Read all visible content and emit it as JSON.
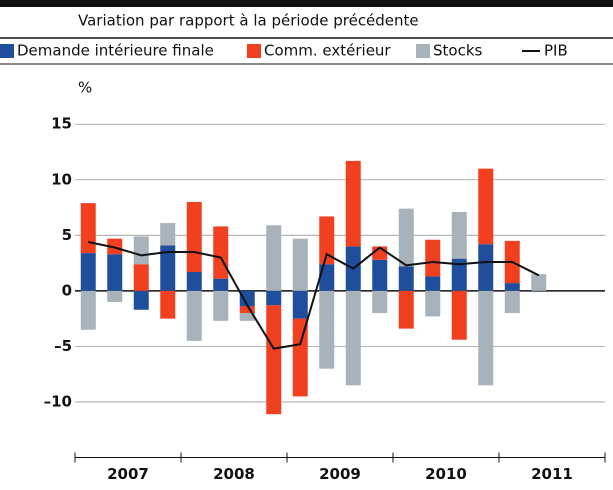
{
  "chart_data": {
    "type": "bar",
    "subtitle": "Variation par rapport à la période précédente",
    "y_unit": "%",
    "categories": [
      null,
      null,
      null,
      null,
      null,
      null,
      null,
      null,
      null,
      null,
      null,
      null,
      null,
      null,
      null,
      null,
      null,
      null
    ],
    "year_labels": [
      "2007",
      "2008",
      "2009",
      "2010",
      "2011"
    ],
    "series": [
      {
        "name": "Demande intérieure finale",
        "type": "bar",
        "color": "#1f4e9c",
        "values": [
          3.4,
          3.3,
          -1.7,
          4.1,
          1.7,
          1.1,
          -1.4,
          -1.3,
          -2.5,
          2.4,
          4.0,
          2.8,
          2.2,
          1.3,
          2.9,
          4.2,
          0.7,
          0
        ]
      },
      {
        "name": "Comm. extérieur",
        "type": "bar",
        "color": "#f0401f",
        "values": [
          4.5,
          1.4,
          2.4,
          -2.5,
          6.3,
          4.7,
          -0.6,
          -9.8,
          -7.0,
          4.3,
          7.7,
          1.2,
          -3.4,
          3.3,
          -4.4,
          6.8,
          3.8,
          0
        ]
      },
      {
        "name": "Stocks",
        "type": "bar",
        "color": "#a7b2ba",
        "values": [
          -3.5,
          -1.0,
          2.5,
          2.0,
          -4.5,
          -2.7,
          -0.7,
          5.9,
          4.7,
          -7.0,
          -8.5,
          -2.0,
          5.2,
          -2.3,
          4.2,
          -8.5,
          -2.0,
          1.5
        ]
      },
      {
        "name": "PIB",
        "type": "line",
        "color": "#111111",
        "values": [
          4.4,
          3.9,
          3.2,
          3.5,
          3.5,
          3.0,
          -1.3,
          -5.2,
          -4.8,
          3.3,
          2.0,
          3.9,
          2.3,
          2.6,
          2.4,
          2.6,
          2.6,
          1.4
        ]
      }
    ],
    "ylim": [
      -15,
      17
    ],
    "yticks": [
      15,
      10,
      5,
      0,
      {
        "value": -5,
        "label": "–5"
      },
      {
        "value": -10,
        "label": "–10"
      }
    ],
    "grid": true
  }
}
